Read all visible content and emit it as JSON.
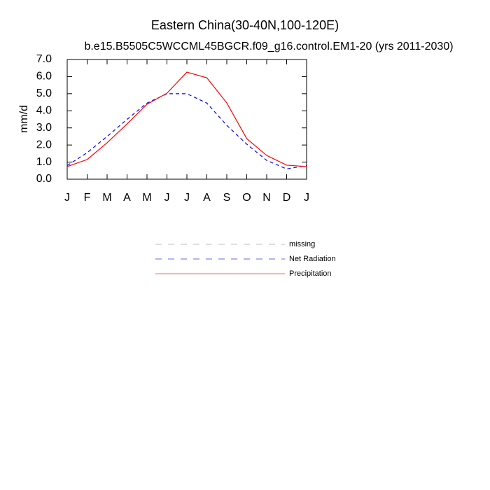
{
  "chart_data": {
    "type": "line",
    "title": "Eastern China(30-40N,100-120E)",
    "subtitle": "b.e15.B5505C5WCCML45BGCR.f09_g16.control.EM1-20 (yrs 2011-2030)",
    "y_label": "mm/d",
    "categories": [
      "J",
      "F",
      "M",
      "A",
      "M",
      "J",
      "J",
      "A",
      "S",
      "O",
      "N",
      "D",
      "J"
    ],
    "series": [
      {
        "name": "missing",
        "color": "#999999",
        "dash": true,
        "values": [
          null,
          null,
          null,
          null,
          null,
          null,
          null,
          null,
          null,
          null,
          null,
          null,
          null
        ]
      },
      {
        "name": "Net Radiation",
        "color": "#0000ff",
        "dash": true,
        "values": [
          0.8,
          1.55,
          2.5,
          3.5,
          4.45,
          5.0,
          5.0,
          4.45,
          3.15,
          2.05,
          1.1,
          0.6,
          0.8
        ]
      },
      {
        "name": "Precipitation",
        "color": "#ff0000",
        "dash": false,
        "values": [
          0.74,
          1.15,
          2.13,
          3.23,
          4.38,
          5.03,
          6.26,
          5.93,
          4.46,
          2.37,
          1.39,
          0.82,
          0.74
        ]
      }
    ],
    "ylim": [
      0,
      7
    ],
    "yticks": [
      {
        "value": 0,
        "label": "0.0"
      },
      {
        "value": 1,
        "label": "1.0"
      },
      {
        "value": 2,
        "label": "2.0"
      },
      {
        "value": 3,
        "label": "3.0"
      },
      {
        "value": 4,
        "label": "4.0"
      },
      {
        "value": 5,
        "label": "5.0"
      },
      {
        "value": 6,
        "label": "6.0"
      },
      {
        "value": 7,
        "label": "7.0"
      }
    ],
    "grid": false
  }
}
